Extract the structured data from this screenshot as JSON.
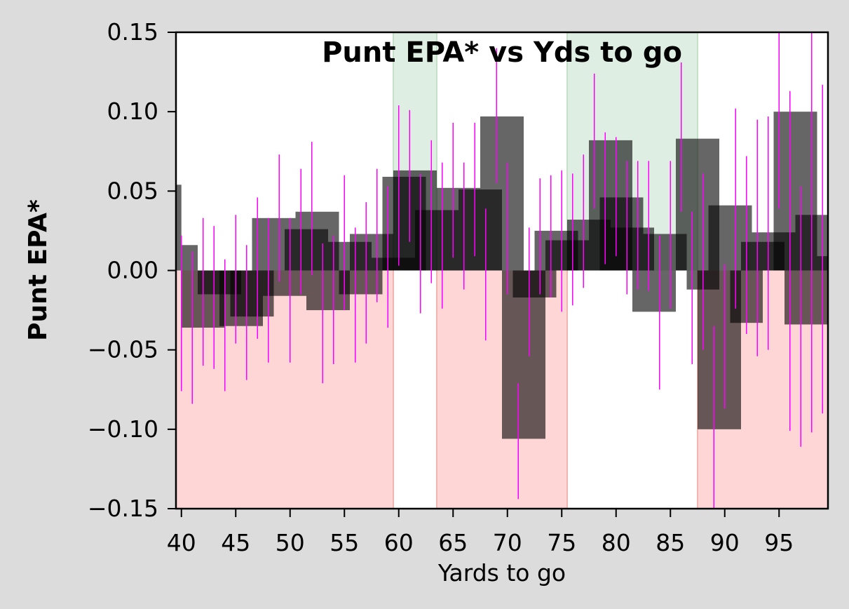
{
  "chart_data": {
    "type": "bar",
    "title": "Punt EPA* vs Yds to go",
    "xlabel": "Yards to go",
    "ylabel": "Punt EPA*",
    "xlim": [
      39.5,
      99.5
    ],
    "ylim": [
      -0.15,
      0.15
    ],
    "xticks": [
      40,
      45,
      50,
      55,
      60,
      65,
      70,
      75,
      80,
      85,
      90,
      95
    ],
    "xtick_labels": [
      "40",
      "45",
      "50",
      "55",
      "60",
      "65",
      "70",
      "75",
      "80",
      "85",
      "90",
      "95"
    ],
    "yticks": [
      -0.15,
      -0.1,
      -0.05,
      0.0,
      0.05,
      0.1,
      0.15
    ],
    "ytick_labels": [
      "−0.15",
      "−0.10",
      "−0.05",
      "0.00",
      "0.05",
      "0.10",
      "0.15"
    ],
    "regions": [
      {
        "x0": 39.5,
        "x1": 59.5,
        "sign": "negative"
      },
      {
        "x0": 59.5,
        "x1": 63.5,
        "sign": "positive"
      },
      {
        "x0": 63.5,
        "x1": 75.5,
        "sign": "negative"
      },
      {
        "x0": 75.5,
        "x1": 87.5,
        "sign": "positive"
      },
      {
        "x0": 87.5,
        "x1": 99.5,
        "sign": "negative"
      }
    ],
    "rolling_bars": [
      {
        "x0": 39.5,
        "x1": 40.0,
        "value": 0.054
      },
      {
        "x0": 40.0,
        "x1": 41.5,
        "value": 0.016
      },
      {
        "x0": 40.0,
        "x1": 44.0,
        "value": -0.036
      },
      {
        "x0": 41.5,
        "x1": 45.5,
        "value": -0.015
      },
      {
        "x0": 43.5,
        "x1": 47.5,
        "value": -0.035
      },
      {
        "x0": 44.5,
        "x1": 48.5,
        "value": -0.029
      },
      {
        "x0": 46.5,
        "x1": 50.5,
        "value": 0.033
      },
      {
        "x0": 47.5,
        "x1": 51.5,
        "value": -0.016
      },
      {
        "x0": 49.5,
        "x1": 53.5,
        "value": 0.026
      },
      {
        "x0": 50.5,
        "x1": 54.5,
        "value": 0.037
      },
      {
        "x0": 51.5,
        "x1": 55.5,
        "value": -0.025
      },
      {
        "x0": 53.5,
        "x1": 57.5,
        "value": 0.018
      },
      {
        "x0": 54.5,
        "x1": 58.5,
        "value": -0.015
      },
      {
        "x0": 55.5,
        "x1": 59.5,
        "value": 0.023
      },
      {
        "x0": 57.5,
        "x1": 61.5,
        "value": 0.008
      },
      {
        "x0": 58.5,
        "x1": 62.5,
        "value": 0.059
      },
      {
        "x0": 59.5,
        "x1": 63.5,
        "value": 0.063
      },
      {
        "x0": 61.5,
        "x1": 65.5,
        "value": 0.038
      },
      {
        "x0": 63.5,
        "x1": 67.5,
        "value": 0.052
      },
      {
        "x0": 65.5,
        "x1": 69.5,
        "value": 0.051
      },
      {
        "x0": 67.5,
        "x1": 71.5,
        "value": 0.097
      },
      {
        "x0": 69.5,
        "x1": 73.5,
        "value": -0.106
      },
      {
        "x0": 70.5,
        "x1": 74.5,
        "value": -0.017
      },
      {
        "x0": 72.5,
        "x1": 76.5,
        "value": 0.025
      },
      {
        "x0": 73.5,
        "x1": 77.5,
        "value": 0.019
      },
      {
        "x0": 75.5,
        "x1": 79.5,
        "value": 0.032
      },
      {
        "x0": 77.5,
        "x1": 81.5,
        "value": 0.082
      },
      {
        "x0": 78.5,
        "x1": 82.5,
        "value": 0.046
      },
      {
        "x0": 79.5,
        "x1": 83.5,
        "value": 0.027
      },
      {
        "x0": 81.5,
        "x1": 85.5,
        "value": -0.026
      },
      {
        "x0": 82.5,
        "x1": 86.5,
        "value": 0.023
      },
      {
        "x0": 85.5,
        "x1": 89.5,
        "value": 0.083
      },
      {
        "x0": 86.5,
        "x1": 89.5,
        "value": -0.012
      },
      {
        "x0": 87.5,
        "x1": 91.5,
        "value": -0.1
      },
      {
        "x0": 88.5,
        "x1": 92.5,
        "value": 0.041
      },
      {
        "x0": 90.5,
        "x1": 93.5,
        "value": -0.033
      },
      {
        "x0": 91.5,
        "x1": 95.5,
        "value": 0.018
      },
      {
        "x0": 92.5,
        "x1": 96.5,
        "value": 0.024
      },
      {
        "x0": 94.5,
        "x1": 98.5,
        "value": 0.1
      },
      {
        "x0": 95.5,
        "x1": 99.5,
        "value": -0.034
      },
      {
        "x0": 96.5,
        "x1": 99.5,
        "value": 0.035
      },
      {
        "x0": 98.5,
        "x1": 99.5,
        "value": 0.009
      }
    ],
    "error_bars": [
      {
        "x": 40,
        "low": -0.076,
        "high": 0.022
      },
      {
        "x": 41,
        "low": -0.084,
        "high": 0.012
      },
      {
        "x": 42,
        "low": -0.06,
        "high": 0.033
      },
      {
        "x": 43,
        "low": -0.062,
        "high": 0.028
      },
      {
        "x": 44,
        "low": -0.076,
        "high": 0.007
      },
      {
        "x": 45,
        "low": -0.046,
        "high": 0.035
      },
      {
        "x": 46,
        "low": -0.069,
        "high": 0.016
      },
      {
        "x": 47,
        "low": -0.043,
        "high": 0.046
      },
      {
        "x": 48,
        "low": -0.058,
        "high": 0.033
      },
      {
        "x": 49,
        "low": -0.007,
        "high": 0.073
      },
      {
        "x": 50,
        "low": -0.058,
        "high": 0.033
      },
      {
        "x": 51,
        "low": -0.015,
        "high": 0.064
      },
      {
        "x": 52,
        "low": -0.003,
        "high": 0.081
      },
      {
        "x": 53,
        "low": -0.071,
        "high": 0.017
      },
      {
        "x": 54,
        "low": -0.059,
        "high": 0.022
      },
      {
        "x": 55,
        "low": -0.025,
        "high": 0.06
      },
      {
        "x": 56,
        "low": -0.058,
        "high": 0.027
      },
      {
        "x": 57,
        "low": -0.046,
        "high": 0.043
      },
      {
        "x": 58,
        "low": -0.02,
        "high": 0.064
      },
      {
        "x": 59,
        "low": -0.036,
        "high": 0.053
      },
      {
        "x": 60,
        "low": 0.003,
        "high": 0.104
      },
      {
        "x": 61,
        "low": 0.018,
        "high": 0.101
      },
      {
        "x": 62,
        "low": -0.027,
        "high": 0.061
      },
      {
        "x": 63,
        "low": -0.008,
        "high": 0.082
      },
      {
        "x": 64,
        "low": -0.024,
        "high": 0.068
      },
      {
        "x": 65,
        "low": 0.008,
        "high": 0.093
      },
      {
        "x": 66,
        "low": -0.012,
        "high": 0.068
      },
      {
        "x": 67,
        "low": 0.009,
        "high": 0.093
      },
      {
        "x": 68,
        "low": -0.044,
        "high": 0.039
      },
      {
        "x": 69,
        "low": 0.055,
        "high": 0.14
      },
      {
        "x": 70,
        "low": -0.015,
        "high": 0.068
      },
      {
        "x": 71,
        "low": -0.144,
        "high": -0.071
      },
      {
        "x": 72,
        "low": -0.054,
        "high": 0.027
      },
      {
        "x": 73,
        "low": -0.015,
        "high": 0.058
      },
      {
        "x": 74,
        "low": -0.017,
        "high": 0.06
      },
      {
        "x": 75,
        "low": -0.026,
        "high": 0.063
      },
      {
        "x": 76,
        "low": -0.022,
        "high": 0.061
      },
      {
        "x": 77,
        "low": -0.011,
        "high": 0.073
      },
      {
        "x": 78,
        "low": 0.039,
        "high": 0.124
      },
      {
        "x": 79,
        "low": 0.004,
        "high": 0.087
      },
      {
        "x": 80,
        "low": 0.009,
        "high": 0.084
      },
      {
        "x": 81,
        "low": -0.015,
        "high": 0.069
      },
      {
        "x": 82,
        "low": -0.012,
        "high": 0.069
      },
      {
        "x": 83,
        "low": -0.013,
        "high": 0.069
      },
      {
        "x": 84,
        "low": -0.075,
        "high": 0.022
      },
      {
        "x": 85,
        "low": -0.024,
        "high": 0.069
      },
      {
        "x": 86,
        "low": 0.037,
        "high": 0.131
      },
      {
        "x": 87,
        "low": -0.059,
        "high": 0.037
      },
      {
        "x": 88,
        "low": -0.05,
        "high": 0.061
      },
      {
        "x": 89,
        "low": -0.15,
        "high": -0.035
      },
      {
        "x": 90,
        "low": -0.087,
        "high": 0.004
      },
      {
        "x": 91,
        "low": -0.024,
        "high": 0.102
      },
      {
        "x": 92,
        "low": -0.04,
        "high": 0.072
      },
      {
        "x": 93,
        "low": -0.054,
        "high": 0.095
      },
      {
        "x": 94,
        "low": -0.05,
        "high": 0.097
      },
      {
        "x": 95,
        "low": 0.039,
        "high": 0.15
      },
      {
        "x": 96,
        "low": -0.101,
        "high": 0.113
      },
      {
        "x": 97,
        "low": -0.111,
        "high": 0.053
      },
      {
        "x": 98,
        "low": -0.102,
        "high": 0.15
      },
      {
        "x": 99,
        "low": -0.09,
        "high": 0.117
      }
    ],
    "colors": {
      "negative_region": "#ffd6d6",
      "negative_edge": "#f2b6b0",
      "positive_region": "#dfeee2",
      "positive_edge": "#c5e0c9",
      "bar": "#000000",
      "error_bar": "#ff00ff",
      "background": "#dcdcdc",
      "plot_background": "#ffffff"
    }
  }
}
